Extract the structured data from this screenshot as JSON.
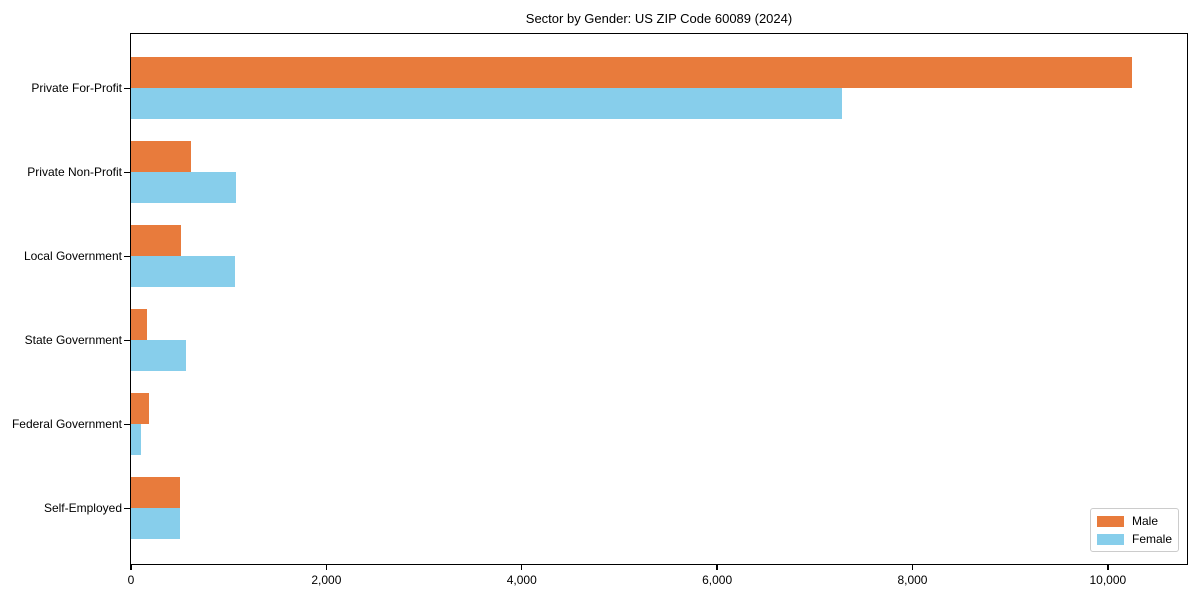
{
  "title": "Sector by Gender: US ZIP Code 60089 (2024)",
  "chart_data": {
    "type": "bar",
    "orientation": "horizontal",
    "title": "Sector by Gender: US ZIP Code 60089 (2024)",
    "categories": [
      "Private For-Profit",
      "Private Non-Profit",
      "Local Government",
      "State Government",
      "Federal Government",
      "Self-Employed"
    ],
    "series": [
      {
        "name": "Male",
        "color": "#e87b3c",
        "values": [
          10250,
          610,
          510,
          160,
          180,
          500
        ]
      },
      {
        "name": "Female",
        "color": "#87ceeb",
        "values": [
          7280,
          1070,
          1060,
          560,
          100,
          500
        ]
      }
    ],
    "xlabel": "",
    "ylabel": "",
    "xlim": [
      0,
      10800
    ],
    "xticks": [
      0,
      2000,
      4000,
      6000,
      8000,
      10000
    ],
    "xtick_labels": [
      "0",
      "2,000",
      "4,000",
      "6,000",
      "8,000",
      "10,000"
    ],
    "grid": false,
    "legend_position": "lower right"
  },
  "legend": {
    "items": [
      {
        "label": "Male",
        "color": "#e87b3c"
      },
      {
        "label": "Female",
        "color": "#87ceeb"
      }
    ]
  }
}
